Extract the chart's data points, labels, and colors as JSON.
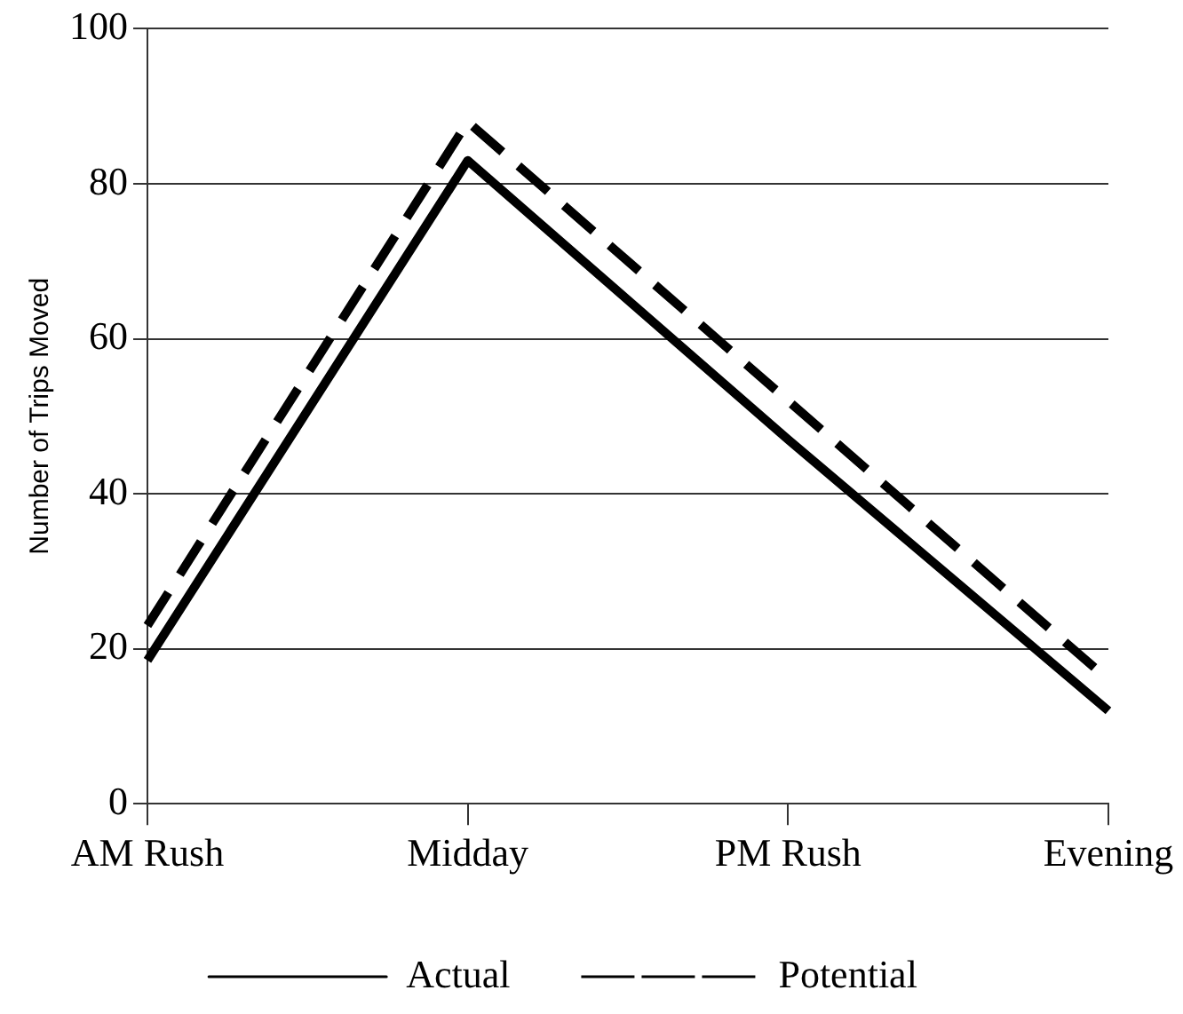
{
  "chart_data": {
    "type": "line",
    "ylabel": "Number of Trips Moved",
    "categories": [
      "AM Rush",
      "Midday",
      "PM Rush",
      "Evening"
    ],
    "series": [
      {
        "name": "Actual",
        "color": "#000000",
        "values": [
          18.5,
          83,
          47,
          12
        ],
        "line_style": "solid"
      },
      {
        "name": "Potential",
        "color": "#000000",
        "values": [
          23,
          88,
          52,
          16
        ],
        "line_style": "dashed"
      }
    ],
    "ylim": [
      0,
      100
    ],
    "yticks": [
      0,
      20,
      40,
      60,
      80,
      100
    ],
    "grid": "y",
    "legend": "bottom",
    "marker": "none"
  }
}
